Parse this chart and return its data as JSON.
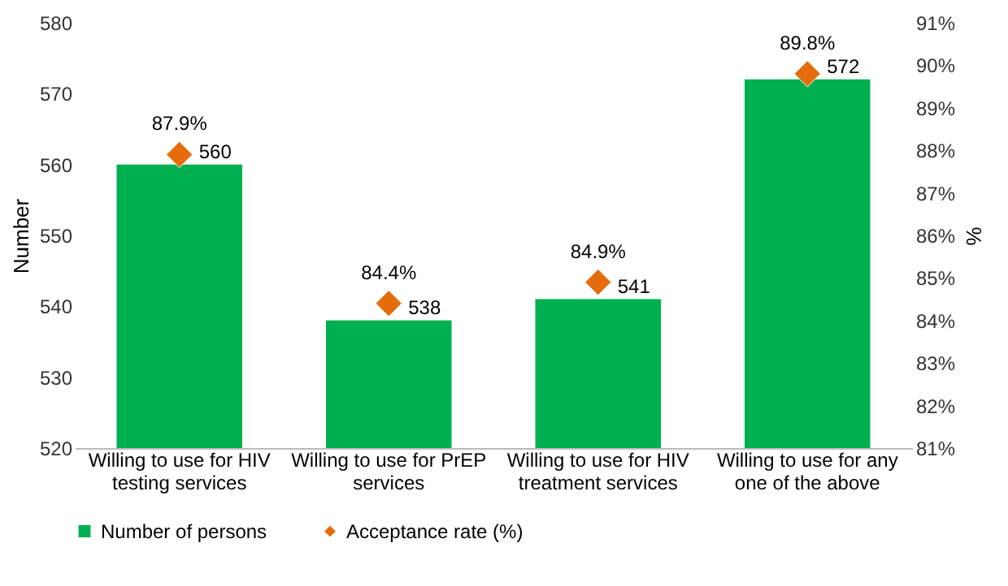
{
  "chart_data": {
    "type": "bar",
    "categories": [
      "Willing to use for HIV testing services",
      "Willing to use for PrEP services",
      "Willing to use for HIV treatment services",
      "Willing to use for any one of the above"
    ],
    "series": [
      {
        "name": "Number of persons",
        "color": "#00b050",
        "values": [
          560,
          538,
          541,
          572
        ],
        "value_labels": [
          "560",
          "538",
          "541",
          "572"
        ]
      },
      {
        "name": "Acceptance rate (%)",
        "type": "scatter",
        "axis": "y2",
        "color": "#e46c0a",
        "values": [
          87.9,
          84.4,
          84.9,
          89.8
        ],
        "value_labels": [
          "87.9%",
          "84.4%",
          "84.9%",
          "89.8%"
        ]
      }
    ],
    "ylabel": "Number",
    "y2label": "%",
    "ylim": [
      520,
      580
    ],
    "yticks": [
      520,
      530,
      540,
      550,
      560,
      570,
      580
    ],
    "y2lim": [
      81,
      91
    ],
    "y2ticks": [
      {
        "value": 81,
        "label": "81%"
      },
      {
        "value": 82,
        "label": "82%"
      },
      {
        "value": 83,
        "label": "83%"
      },
      {
        "value": 84,
        "label": "84%"
      },
      {
        "value": 85,
        "label": "85%"
      },
      {
        "value": 86,
        "label": "86%"
      },
      {
        "value": 87,
        "label": "87%"
      },
      {
        "value": 88,
        "label": "88%"
      },
      {
        "value": 89,
        "label": "89%"
      },
      {
        "value": 90,
        "label": "90%"
      },
      {
        "value": 91,
        "label": "91%"
      }
    ],
    "legend": "bottom",
    "marker": "diamond",
    "grid": false
  }
}
